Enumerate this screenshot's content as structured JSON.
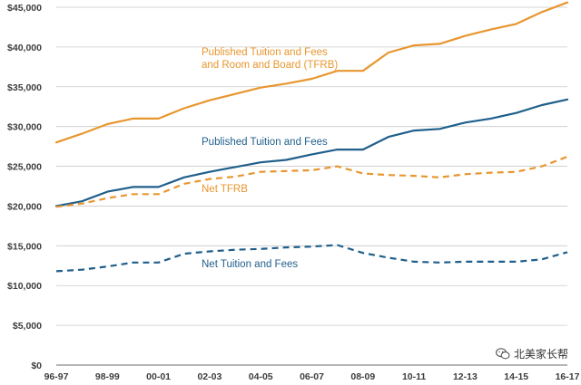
{
  "chart_data": {
    "type": "line",
    "title": "",
    "xlabel": "",
    "ylabel": "",
    "ylim": [
      0,
      45000
    ],
    "grid": "horizontal",
    "legend": "inline",
    "x": [
      "96-97",
      "97-98",
      "98-99",
      "99-00",
      "00-01",
      "01-02",
      "02-03",
      "03-04",
      "04-05",
      "05-06",
      "06-07",
      "07-08",
      "08-09",
      "09-10",
      "10-11",
      "11-12",
      "12-13",
      "13-14",
      "14-15",
      "15-16",
      "16-17"
    ],
    "x_tick_labels": [
      "96-97",
      "98-99",
      "00-01",
      "02-03",
      "04-05",
      "06-07",
      "08-09",
      "10-11",
      "12-13",
      "14-15",
      "16-17"
    ],
    "y_tick_labels": [
      "$0",
      "$5,000",
      "$10,000",
      "$15,000",
      "$20,000",
      "$25,000",
      "$30,000",
      "$35,000",
      "$40,000",
      "$45,000"
    ],
    "series": [
      {
        "name": "Published Tuition and Fees and Room and Board (TFRB)",
        "label_lines": [
          "Published Tuition and Fees",
          "and Room and Board (TFRB)"
        ],
        "color": "#E8962E",
        "style": "solid",
        "values": [
          28000,
          29100,
          30300,
          31000,
          31000,
          32300,
          33300,
          34100,
          34900,
          35400,
          36000,
          37000,
          37000,
          39300,
          40200,
          40400,
          41400,
          42200,
          42900,
          44400,
          45600
        ]
      },
      {
        "name": "Published Tuition and Fees",
        "label_lines": [
          "Published Tuition and Fees"
        ],
        "color": "#1F5F8B",
        "style": "solid",
        "values": [
          20000,
          20600,
          21800,
          22400,
          22400,
          23600,
          24300,
          24900,
          25500,
          25800,
          26500,
          27100,
          27100,
          28700,
          29500,
          29700,
          30500,
          31000,
          31700,
          32700,
          33400
        ]
      },
      {
        "name": "Net TFRB",
        "label_lines": [
          "Net TFRB"
        ],
        "color": "#E8962E",
        "style": "dashed",
        "values": [
          19900,
          20300,
          21000,
          21500,
          21500,
          22800,
          23400,
          23700,
          24300,
          24400,
          24500,
          25000,
          24100,
          23900,
          23800,
          23600,
          24000,
          24200,
          24300,
          25000,
          26200
        ]
      },
      {
        "name": "Net Tuition and Fees",
        "label_lines": [
          "Net Tuition and Fees"
        ],
        "color": "#1F5F8B",
        "style": "dashed",
        "values": [
          11800,
          12000,
          12400,
          12900,
          12900,
          14000,
          14300,
          14500,
          14600,
          14800,
          14900,
          15100,
          14100,
          13500,
          13000,
          12900,
          13000,
          13000,
          13000,
          13300,
          14200
        ]
      }
    ]
  },
  "watermark": {
    "text": "北美家长帮",
    "icon": "wechat-logo-icon"
  }
}
